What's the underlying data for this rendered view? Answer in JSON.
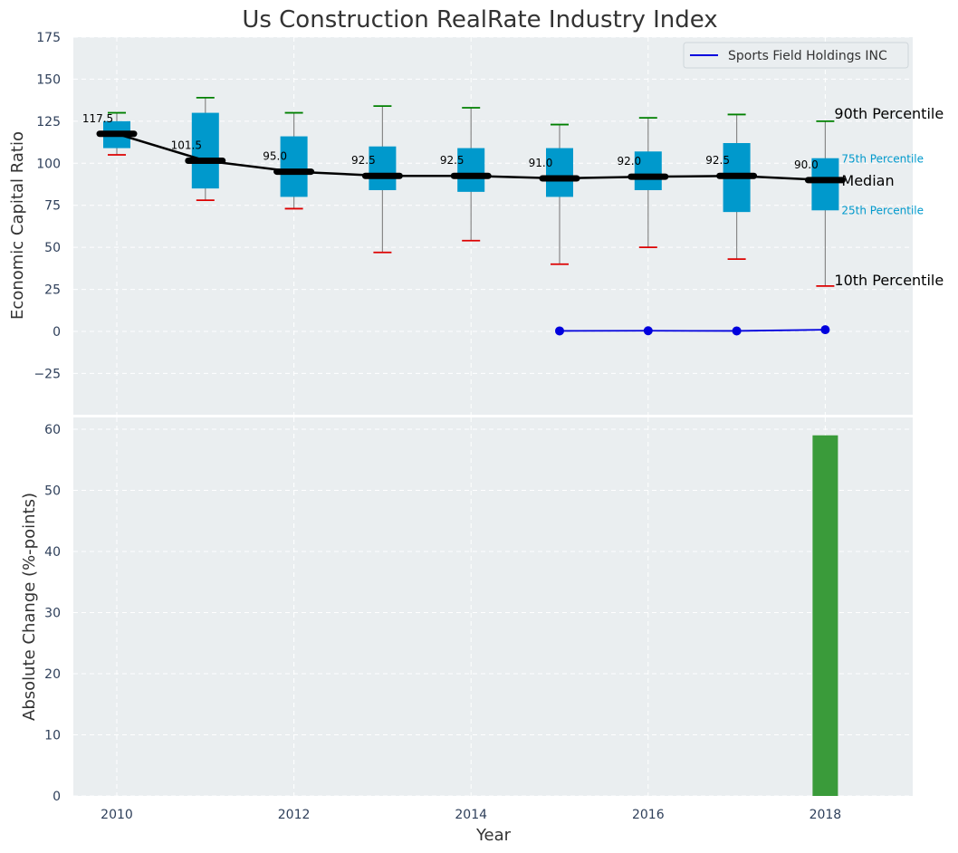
{
  "chart_data": {
    "title": "Us Construction RealRate Industry Index",
    "top_panel": {
      "type": "box",
      "ylabel": "Economic Capital Ratio",
      "ylim": [
        -50,
        175
      ],
      "yticks": [
        -25,
        0,
        25,
        50,
        75,
        100,
        125,
        150,
        175
      ],
      "ytick_labels": [
        "−25",
        "0",
        "25",
        "50",
        "75",
        "100",
        "125",
        "150",
        "175"
      ],
      "grid": true,
      "legend_position": "top-right",
      "years": [
        2010,
        2011,
        2012,
        2013,
        2014,
        2015,
        2016,
        2017,
        2018
      ],
      "boxes": [
        {
          "year": 2010,
          "p10": 105,
          "q1": 109,
          "median": 117.5,
          "q3": 125,
          "p90": 130,
          "label": "117.5"
        },
        {
          "year": 2011,
          "p10": 78,
          "q1": 85,
          "median": 101.5,
          "q3": 130,
          "p90": 139,
          "label": "101.5"
        },
        {
          "year": 2012,
          "p10": 73,
          "q1": 80,
          "median": 95.0,
          "q3": 116,
          "p90": 130,
          "label": "95.0"
        },
        {
          "year": 2013,
          "p10": 47,
          "q1": 84,
          "median": 92.5,
          "q3": 110,
          "p90": 134,
          "label": "92.5"
        },
        {
          "year": 2014,
          "p10": 54,
          "q1": 83,
          "median": 92.5,
          "q3": 109,
          "p90": 133,
          "label": "92.5"
        },
        {
          "year": 2015,
          "p10": 40,
          "q1": 80,
          "median": 91.0,
          "q3": 109,
          "p90": 123,
          "label": "91.0"
        },
        {
          "year": 2016,
          "p10": 50,
          "q1": 84,
          "median": 92.0,
          "q3": 107,
          "p90": 127,
          "label": "92.0"
        },
        {
          "year": 2017,
          "p10": 43,
          "q1": 71,
          "median": 92.5,
          "q3": 112,
          "p90": 129,
          "label": "92.5"
        },
        {
          "year": 2018,
          "p10": 27,
          "q1": 72,
          "median": 90.0,
          "q3": 103,
          "p90": 125,
          "label": "90.0"
        }
      ],
      "series": [
        {
          "name": "Sports Field Holdings INC",
          "color": "#0000dd",
          "x": [
            2015,
            2016,
            2017,
            2018
          ],
          "y": [
            0.3,
            0.4,
            0.3,
            1.0
          ]
        }
      ],
      "annotations": {
        "p90": "90th Percentile",
        "q3": "75th Percentile",
        "median": "Median",
        "q1": "25th Percentile",
        "p10": "10th Percentile"
      },
      "colors": {
        "box": "#0099cc",
        "median": "#000000",
        "p90_cap": "#008000",
        "p10_cap": "#dd0000",
        "whisker": "#888888"
      }
    },
    "bottom_panel": {
      "type": "bar",
      "ylabel": "Absolute Change (%-points)",
      "xlabel": "Year",
      "ylim": [
        0,
        62
      ],
      "yticks": [
        0,
        10,
        20,
        30,
        40,
        50,
        60
      ],
      "xticks": [
        2010,
        2012,
        2014,
        2016,
        2018
      ],
      "grid": true,
      "bars": [
        {
          "x": 2018,
          "value": 59
        }
      ],
      "colors": {
        "bar": "#3a9b3a"
      }
    }
  }
}
